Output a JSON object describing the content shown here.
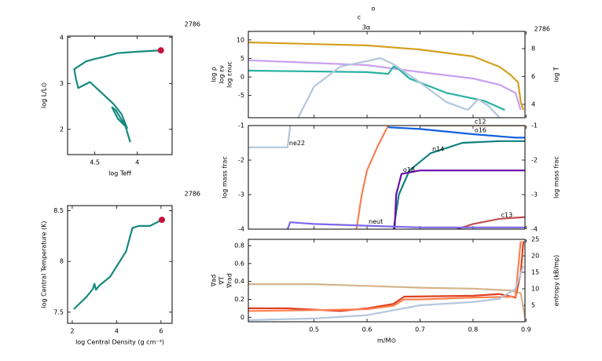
{
  "chart_data": [
    {
      "type": "line",
      "xlabel": "log Teff",
      "ylabel": "log L/L⊙",
      "model": "2786",
      "xlim": [
        4.82,
        3.59
      ],
      "ylim": [
        1.45,
        4.03
      ],
      "xticks": [
        4.5,
        4
      ],
      "yticks": [
        2,
        3,
        4
      ],
      "series": [
        {
          "color": "#168a7e",
          "x": [
            4.083,
            4.139,
            4.25,
            4.296,
            4.231,
            4.12,
            4.185,
            4.278,
            4.417,
            4.556,
            4.694,
            4.722,
            4.741,
            4.602,
            4.509,
            4.37,
            4.231,
            4.0,
            3.722
          ],
          "values": [
            1.72,
            2.07,
            2.41,
            2.48,
            2.24,
            2.03,
            2.33,
            2.55,
            2.79,
            3.03,
            2.9,
            3.1,
            3.31,
            3.48,
            3.53,
            3.59,
            3.66,
            3.69,
            3.72
          ]
        }
      ]
    },
    {
      "type": "line",
      "xlabel": "log Central Density (g cm⁻³)",
      "ylabel": "log Central Temperature (K)",
      "model": "2786",
      "xlim": [
        1.79,
        6.5
      ],
      "ylim": [
        7.39,
        8.55
      ],
      "xticks": [
        2,
        4,
        6
      ],
      "yticks": [
        7.5,
        8,
        8.5
      ],
      "series": [
        {
          "color": "#168a7e",
          "x": [
            2.07,
            2.64,
            2.93,
            3.0,
            3.07,
            3.21,
            3.71,
            4.43,
            4.71,
            5.0,
            5.5,
            6.04
          ],
          "values": [
            7.53,
            7.65,
            7.73,
            7.78,
            7.72,
            7.76,
            7.85,
            8.1,
            8.33,
            8.35,
            8.35,
            8.41
          ]
        }
      ]
    },
    {
      "type": "line",
      "model": "2786",
      "annotations": [
        "c",
        "o",
        "3α"
      ],
      "xlim": [
        0.376,
        0.898
      ],
      "ylim": [
        -11,
        12.3
      ],
      "yticks": [
        -5,
        0,
        5,
        10
      ],
      "y2lim": [
        3.04,
        9.24
      ],
      "y2ticks": [
        4,
        6,
        8
      ],
      "series": [
        {
          "name": "log ρ",
          "color": "#c9a0f2",
          "x": [
            0.376,
            0.6,
            0.7,
            0.8,
            0.85,
            0.88,
            0.89
          ],
          "values": [
            4.5,
            3.2,
            1.3,
            -0.4,
            -2.1,
            -4.3,
            -8.9
          ]
        },
        {
          "name": "log εν",
          "color": "#2ab0a2",
          "x": [
            0.376,
            0.6,
            0.64,
            0.65,
            0.66,
            0.68,
            0.75,
            0.82,
            0.86
          ],
          "values": [
            1.7,
            1.3,
            0.85,
            2.8,
            2.1,
            -0.4,
            -4.3,
            -6.4,
            -8.9
          ]
        },
        {
          "name": "log εnuc",
          "color": "#b3c6dc",
          "x": [
            0.47,
            0.5,
            0.55,
            0.6,
            0.625,
            0.65,
            0.7,
            0.75,
            0.79,
            0.81,
            0.83,
            0.85
          ],
          "values": [
            -11,
            -2.6,
            2.8,
            4.3,
            5.1,
            3.4,
            -1.5,
            -6.8,
            -8.9,
            -6,
            -7.9,
            -11
          ]
        },
        {
          "name": "log T",
          "color": "#d4a020",
          "axis": "y2",
          "x": [
            0.376,
            0.6,
            0.7,
            0.8,
            0.85,
            0.87,
            0.885,
            0.89,
            0.895
          ],
          "values": [
            8.45,
            8.23,
            7.94,
            7.44,
            6.7,
            6.14,
            5.58,
            4.17,
            3.6
          ]
        }
      ]
    },
    {
      "type": "line",
      "ylabel": "log mass frac",
      "xlim": [
        0.376,
        0.898
      ],
      "ylim": [
        -4,
        -1
      ],
      "yticks": [
        -4,
        -3,
        -2,
        -1
      ],
      "y2lim": [
        -4,
        -1
      ],
      "y2ticks": [
        -4,
        -3,
        -2,
        -1
      ],
      "series": [
        {
          "name": "ne22",
          "color": "#b3c6dc",
          "x": [
            0.376,
            0.45,
            0.455
          ],
          "values": [
            -1.63,
            -1.63,
            -1.0
          ]
        },
        {
          "color": "#f58055",
          "x": [
            0.58,
            0.59,
            0.6,
            0.62,
            0.64
          ],
          "values": [
            -4,
            -3,
            -2.3,
            -1.6,
            -1
          ]
        },
        {
          "name": "c12",
          "color": "#d2b48c",
          "x": [
            0.7,
            0.8,
            0.898
          ],
          "values": [
            -1.0,
            -1.0,
            -1.0
          ]
        },
        {
          "name": "o16",
          "color": "#1060e0",
          "x": [
            0.64,
            0.7,
            0.8,
            0.88,
            0.898
          ],
          "values": [
            -1.05,
            -1.1,
            -1.25,
            -1.35,
            -1.35
          ]
        },
        {
          "name": "n14",
          "color": "#108080",
          "x": [
            0.65,
            0.66,
            0.68,
            0.72,
            0.78,
            0.85,
            0.898
          ],
          "values": [
            -4,
            -3,
            -2.3,
            -1.8,
            -1.5,
            -1.45,
            -1.45
          ]
        },
        {
          "name": "o18",
          "color": "#6a0dad",
          "x": [
            0.652,
            0.655,
            0.665,
            0.7,
            0.898
          ],
          "values": [
            -4,
            -3,
            -2.4,
            -2.3,
            -2.3
          ]
        },
        {
          "name": "c13",
          "color": "#c05050",
          "x": [
            0.77,
            0.8,
            0.85,
            0.898
          ],
          "values": [
            -4,
            -3.85,
            -3.7,
            -3.65
          ]
        },
        {
          "name": "neut",
          "color": "#7b68ee",
          "x": [
            0.45,
            0.455,
            0.5,
            0.6,
            0.7,
            0.8,
            0.898
          ],
          "values": [
            -4,
            -3.8,
            -3.85,
            -3.9,
            -3.95,
            -3.95,
            -3.95
          ]
        }
      ]
    },
    {
      "type": "line",
      "xlabel": "m/M⊙",
      "y2label": "entropy (kB/mp)",
      "xlim": [
        0.376,
        0.898
      ],
      "xticks": [
        0.5,
        0.6,
        0.7,
        0.8,
        0.9
      ],
      "ylim": [
        -0.05,
        0.87
      ],
      "yticks": [
        0,
        0.2,
        0.4,
        0.6,
        0.8
      ],
      "y2lim": [
        0,
        25
      ],
      "y2ticks": [
        5,
        10,
        15,
        20,
        25
      ],
      "series": [
        {
          "name": "∇ad",
          "color": "#d2b48c",
          "x": [
            0.376,
            0.5,
            0.6,
            0.7,
            0.8,
            0.87,
            0.89,
            0.898
          ],
          "values": [
            0.37,
            0.37,
            0.35,
            0.33,
            0.32,
            0.3,
            0.27,
            0.0
          ]
        },
        {
          "name": "∇T",
          "color": "#e04020",
          "x": [
            0.376,
            0.45,
            0.55,
            0.6,
            0.65,
            0.67,
            0.8,
            0.85,
            0.88,
            0.89,
            0.895
          ],
          "values": [
            0.1,
            0.1,
            0.07,
            0.1,
            0.15,
            0.23,
            0.24,
            0.26,
            0.22,
            0.5,
            0.85
          ]
        },
        {
          "name": "∇rad",
          "color": "#ff8050",
          "x": [
            0.376,
            0.5,
            0.6,
            0.65,
            0.67,
            0.7,
            0.8,
            0.88,
            0.89
          ],
          "values": [
            0.07,
            0.08,
            0.09,
            0.13,
            0.2,
            0.2,
            0.22,
            0.23,
            0.85
          ]
        },
        {
          "color": "#b3c6dc",
          "axis": "y2",
          "x": [
            0.376,
            0.5,
            0.6,
            0.65,
            0.7,
            0.8,
            0.85,
            0.88,
            0.895
          ],
          "values": [
            0.5,
            1,
            2,
            3.5,
            5,
            6,
            7,
            10,
            17
          ]
        }
      ]
    }
  ]
}
